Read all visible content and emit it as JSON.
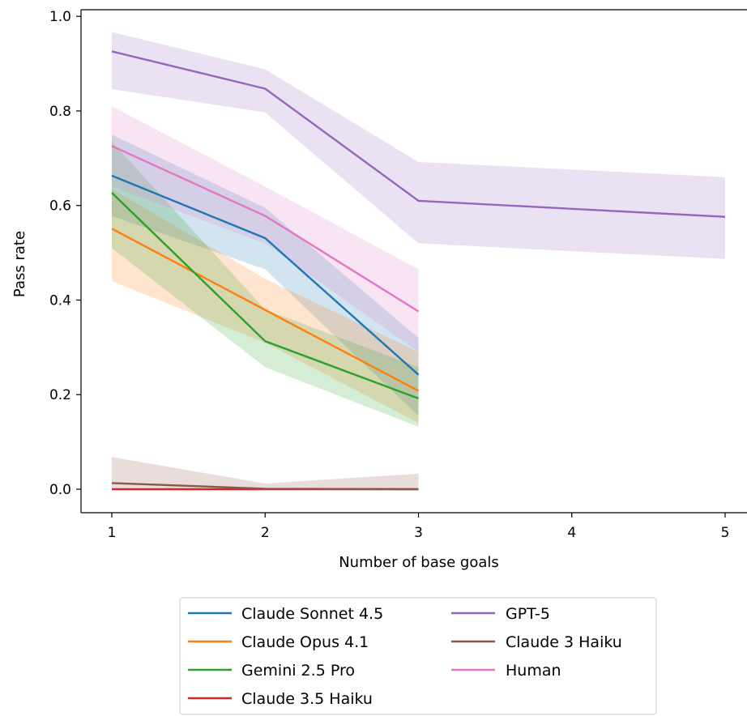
{
  "chart_data": {
    "type": "line",
    "title": "",
    "xlabel": "Number of base goals",
    "ylabel": "Pass rate",
    "xlim": [
      0.8,
      5.05
    ],
    "ylim": [
      -0.05,
      1.013
    ],
    "xticks": [
      1,
      2,
      3,
      4,
      5
    ],
    "xtick_labels": [
      "1",
      "2",
      "3",
      "4",
      "5"
    ],
    "yticks": [
      0.0,
      0.2,
      0.4,
      0.6,
      0.8,
      1.0
    ],
    "ytick_labels": [
      "0.0",
      "0.2",
      "0.4",
      "0.6",
      "0.8",
      "1.0"
    ],
    "grid": false,
    "legend_position": "below plot, two columns",
    "series": [
      {
        "name": "Claude Sonnet 4.5",
        "color": "#1f77b4",
        "x": [
          1,
          2,
          3
        ],
        "y": [
          0.663,
          0.531,
          0.242
        ],
        "lower": [
          0.578,
          0.465,
          0.155
        ],
        "upper": [
          0.75,
          0.595,
          0.32
        ]
      },
      {
        "name": "Claude Opus 4.1",
        "color": "#ff7f0e",
        "x": [
          1,
          2,
          3
        ],
        "y": [
          0.551,
          0.379,
          0.208
        ],
        "lower": [
          0.44,
          0.31,
          0.14
        ],
        "upper": [
          0.635,
          0.445,
          0.29
        ]
      },
      {
        "name": "Gemini 2.5 Pro",
        "color": "#2ca02c",
        "x": [
          1,
          2,
          3
        ],
        "y": [
          0.627,
          0.313,
          0.192
        ],
        "lower": [
          0.51,
          0.258,
          0.132
        ],
        "upper": [
          0.735,
          0.38,
          0.258
        ]
      },
      {
        "name": "Claude 3.5 Haiku",
        "color": "#d62728",
        "x": [
          1,
          2,
          3
        ],
        "y": [
          0.0,
          0.0,
          0.0
        ],
        "lower": [
          0.0,
          0.0,
          0.0
        ],
        "upper": [
          0.0,
          0.0,
          0.0
        ]
      },
      {
        "name": "GPT-5",
        "color": "#9467bd",
        "x": [
          1,
          2,
          3,
          5
        ],
        "y": [
          0.926,
          0.847,
          0.61,
          0.576
        ],
        "lower": [
          0.846,
          0.797,
          0.52,
          0.487
        ],
        "upper": [
          0.967,
          0.888,
          0.692,
          0.66
        ]
      },
      {
        "name": "Claude 3 Haiku",
        "color": "#8c564b",
        "x": [
          1,
          2,
          3
        ],
        "y": [
          0.013,
          0.001,
          0.0
        ],
        "lower": [
          0.0,
          0.0,
          0.0
        ],
        "upper": [
          0.068,
          0.012,
          0.033
        ]
      },
      {
        "name": "Human",
        "color": "#e377c2",
        "x": [
          1,
          2,
          3
        ],
        "y": [
          0.726,
          0.578,
          0.376
        ],
        "lower": [
          0.64,
          0.52,
          0.29
        ],
        "upper": [
          0.81,
          0.64,
          0.465
        ]
      }
    ]
  }
}
